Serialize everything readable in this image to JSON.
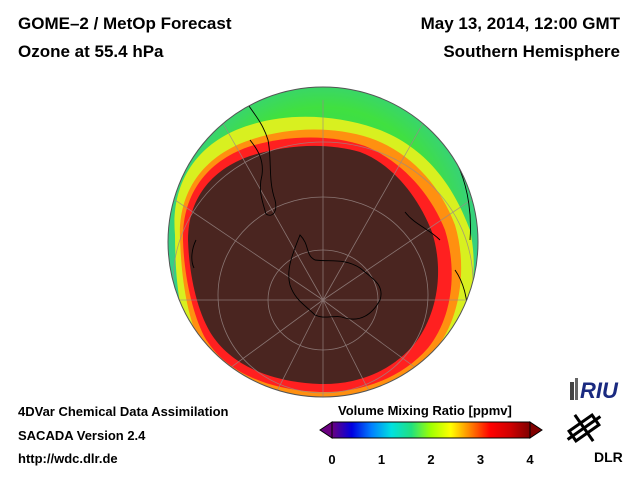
{
  "header": {
    "title_line1": "GOME–2 / MetOp Forecast",
    "title_line2": "Ozone at 55.4 hPa",
    "date": "May 13, 2014, 12:00 GMT",
    "region": "Southern Hemisphere"
  },
  "footer": {
    "line1": "4DVar Chemical Data Assimilation",
    "line2": "SACADA Version 2.4",
    "line3": "http://wdc.dlr.de"
  },
  "colorbar": {
    "title": "Volume Mixing Ratio [ppmv]",
    "ticks": [
      "0",
      "1",
      "2",
      "3",
      "4"
    ],
    "min": 0,
    "max": 4,
    "colors": [
      "#6a0080",
      "#0000e0",
      "#0080ff",
      "#00e0e0",
      "#20e080",
      "#a0ff00",
      "#ffff00",
      "#ff8000",
      "#ff0000",
      "#d00000",
      "#800000"
    ]
  },
  "logos": {
    "riu": "RIU",
    "dlr": "DLR"
  },
  "map": {
    "projection": "orthographic",
    "hemisphere": "south",
    "vortex_color": "#4a2520",
    "rim_color": "#ff2020"
  }
}
